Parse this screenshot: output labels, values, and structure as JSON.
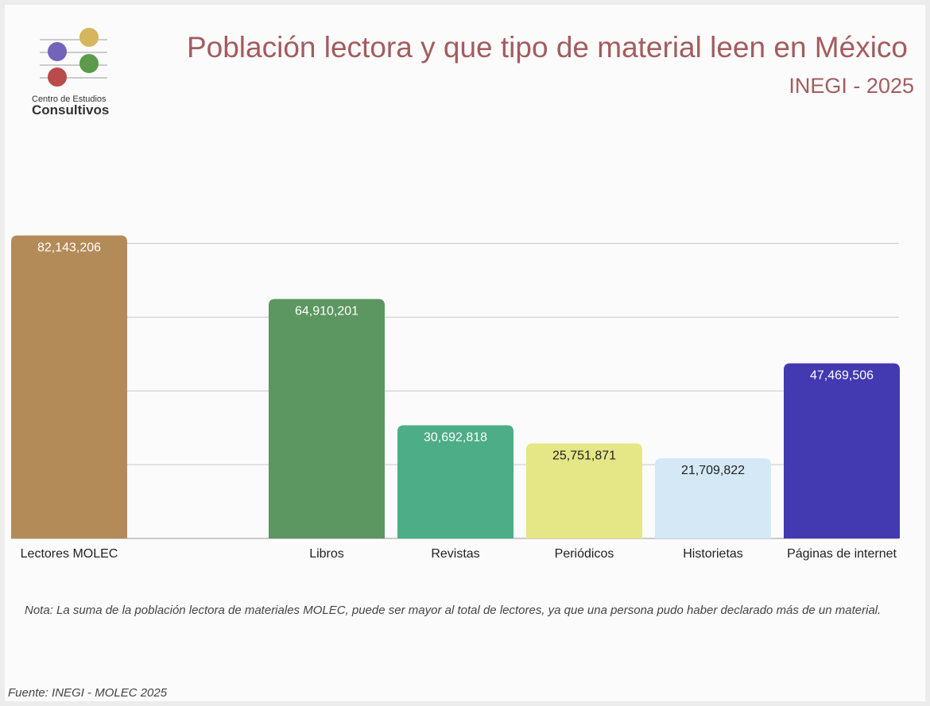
{
  "chart_data": {
    "type": "bar",
    "title": "Población lectora y que tipo de material leen en México",
    "subtitle": "INEGI - 2025",
    "logo": {
      "line1": "Centro de Estudios",
      "line2": "Consultivos"
    },
    "categories": [
      "Lectores MOLEC",
      null,
      "Libros",
      "Revistas",
      "Periódicos",
      "Historietas",
      "Páginas de internet"
    ],
    "values": [
      82143206,
      null,
      64910201,
      30692818,
      25751871,
      21709822,
      47469506
    ],
    "value_labels": [
      "82,143,206",
      null,
      "64,910,201",
      "30,692,818",
      "25,751,871",
      "21,709,822",
      "47,469,506"
    ],
    "colors": [
      "#b38b58",
      null,
      "#5c9660",
      "#4cad86",
      "#e5e686",
      "#d4e8f5",
      "#4339b0"
    ],
    "ylim": [
      0,
      90000000
    ],
    "yticks": [
      0,
      20000000,
      40000000,
      60000000,
      80000000
    ],
    "grid": true,
    "note": "Nota: La suma de la población lectora de materiales MOLEC, puede ser mayor al total de lectores, ya que una persona pudo haber declarado más de un material.",
    "source": "Fuente: INEGI - MOLEC 2025"
  }
}
